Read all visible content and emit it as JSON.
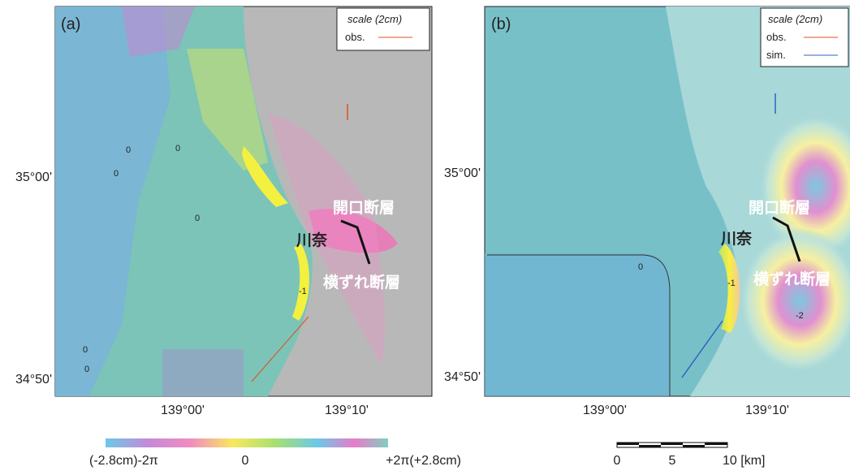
{
  "panels": [
    {
      "label": "(a)",
      "legend": {
        "title": "scale (2cm)",
        "items": [
          "obs."
        ]
      },
      "lat_ticks": [
        "35°00'",
        "34°50'"
      ],
      "lon_ticks": [
        "139°00'",
        "139°10'"
      ],
      "annotations": [
        "開口断層",
        "川奈",
        "横ずれ断層"
      ],
      "contour_labels": [
        "0",
        "0",
        "0",
        "0",
        "0",
        "0",
        "-1"
      ]
    },
    {
      "label": "(b)",
      "legend": {
        "title": "scale (2cm)",
        "items": [
          "obs.",
          "sim."
        ]
      },
      "lat_ticks": [
        "35°00'",
        "34°50'"
      ],
      "lon_ticks": [
        "139°00'",
        "139°10'"
      ],
      "annotations": [
        "開口断層",
        "川奈",
        "横ずれ断層"
      ],
      "contour_labels": [
        "0",
        "-1",
        "-2"
      ]
    }
  ],
  "colorbar": {
    "labels": [
      "(-2.8cm)-2π",
      "0",
      "+2π(+2.8cm)"
    ]
  },
  "scalebar": {
    "labels": [
      "0",
      "5",
      "10 [km]"
    ]
  }
}
